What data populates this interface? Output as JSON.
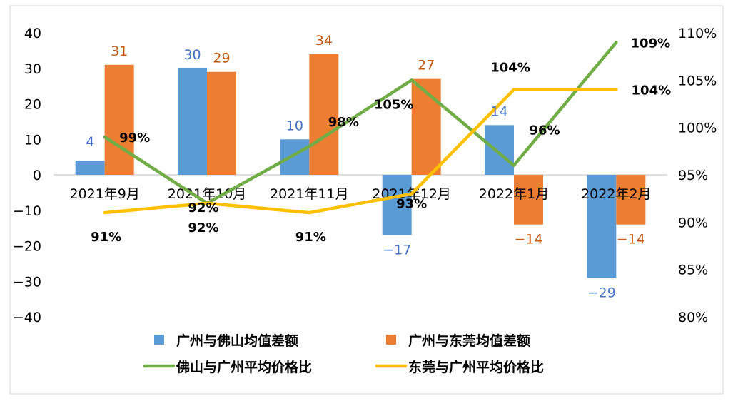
{
  "chart_data": {
    "type": "bar+line",
    "title": "",
    "categories": [
      "2021年9月",
      "2021年10月",
      "2021年11月",
      "2021年12月",
      "2022年1月",
      "2022年2月"
    ],
    "left_axis": {
      "min": -40,
      "max": 40,
      "step": 10,
      "ticks": [
        "40",
        "30",
        "20",
        "10",
        "0",
        "−10",
        "−20",
        "−30",
        "−40"
      ]
    },
    "right_axis": {
      "min": 0.8,
      "max": 1.1,
      "step": 0.05,
      "ticks": [
        "110%",
        "105%",
        "100%",
        "95%",
        "90%",
        "85%",
        "80%"
      ]
    },
    "bar_series": [
      {
        "name": "广州与佛山均值差额",
        "color": "#5B9BD5",
        "label_color": "#4472C4",
        "values": [
          4,
          30,
          10,
          -17,
          14,
          -29
        ],
        "labels": [
          "4",
          "30",
          "10",
          "−17",
          "14",
          "−29"
        ]
      },
      {
        "name": "广州与东莞均值差额",
        "color": "#ED7D31",
        "label_color": "#C55A11",
        "values": [
          31,
          29,
          34,
          27,
          -14,
          -14
        ],
        "labels": [
          "31",
          "29",
          "34",
          "27",
          "−14",
          "−14"
        ]
      }
    ],
    "line_series": [
      {
        "name": "佛山与广州平均价格比",
        "color": "#70AD47",
        "values": [
          0.99,
          0.92,
          0.98,
          1.05,
          0.96,
          1.09
        ],
        "labels": [
          "99%",
          "92%",
          "98%",
          "105%",
          "96%",
          "109%"
        ]
      },
      {
        "name": "东莞与广州平均价格比",
        "color": "#FFC000",
        "values": [
          0.91,
          0.92,
          0.91,
          0.93,
          1.04,
          1.04
        ],
        "labels": [
          "91%",
          "92%",
          "91%",
          "93%",
          "104%",
          "104%"
        ]
      }
    ],
    "legend": {
      "position": "bottom",
      "items": [
        "广州与佛山均值差额",
        "广州与东莞均值差额",
        "佛山与广州平均价格比",
        "东莞与广州平均价格比"
      ]
    }
  }
}
